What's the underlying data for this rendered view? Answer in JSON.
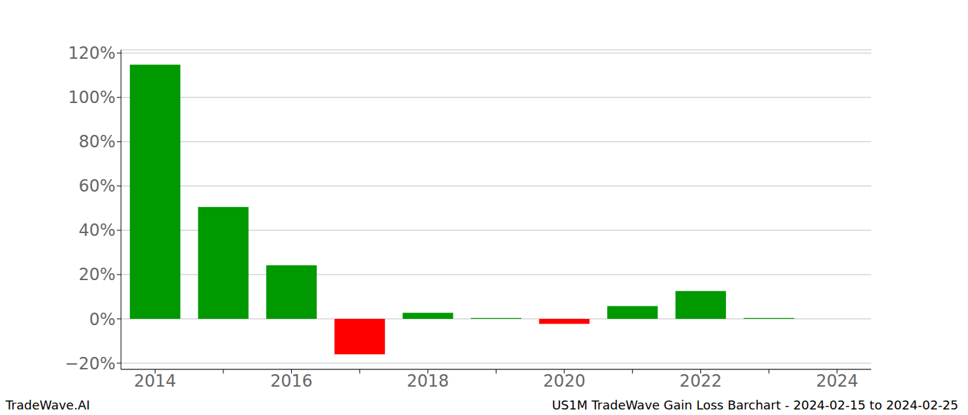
{
  "chart_data": {
    "type": "bar",
    "title": "US1M TradeWave Gain Loss Barchart - 2024-02-15 to 2024-02-25",
    "annotations": [
      "TradeWave.AI"
    ],
    "categories": [
      "2014",
      null,
      "2016",
      null,
      "2018",
      null,
      "2020",
      null,
      "2022",
      null,
      "2024"
    ],
    "values": [
      114.8,
      50.5,
      24.2,
      -16.0,
      2.7,
      0.4,
      -2.3,
      5.8,
      12.6,
      0.4,
      0
    ],
    "colors": [
      "#009900",
      "#009900",
      "#009900",
      "#ff0000",
      "#009900",
      "#009900",
      "#ff0000",
      "#009900",
      "#009900",
      "#009900",
      "#009900"
    ],
    "ylim": [
      -22.8,
      121.5
    ],
    "yticks": [
      {
        "value": -20,
        "label": "−20%"
      },
      {
        "value": 0,
        "label": "0%"
      },
      {
        "value": 20,
        "label": "20%"
      },
      {
        "value": 40,
        "label": "40%"
      },
      {
        "value": 60,
        "label": "60%"
      },
      {
        "value": 80,
        "label": "80%"
      },
      {
        "value": 100,
        "label": "100%"
      },
      {
        "value": 120,
        "label": "120%"
      }
    ],
    "grid": true
  }
}
